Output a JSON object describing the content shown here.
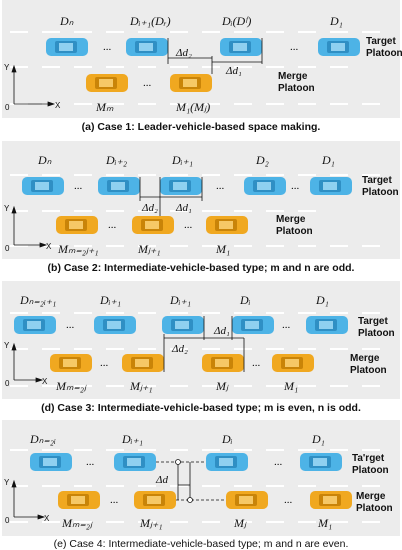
{
  "colors": {
    "road": "#ececec",
    "lane_mark": "#ffffff",
    "target_car": "#4db3e6",
    "target_car_dark": "#2f8fc4",
    "merge_car": "#f0a820",
    "merge_car_dark": "#c98408"
  },
  "axes": {
    "y": "Y",
    "x": "X",
    "origin": "0"
  },
  "panels": [
    {
      "caption": "(a) Case 1: Leader-vehicle-based space making.",
      "target_label": [
        "Target",
        "Platoon"
      ],
      "merge_label": [
        "Merge",
        "Platoon"
      ],
      "dots": "...",
      "deltas": [
        "Δd₂",
        "Δd₁"
      ],
      "top_labels": [
        "Dₙ",
        "Dᵢ₊₁(Dᵣ)",
        "Dᵢ(Dᶠ)",
        "D₁"
      ],
      "bottom_labels": [
        "Mₘ",
        "M₁(Mⱼ)"
      ]
    },
    {
      "caption": "(b) Case 2: Intermediate-vehicle-based type; m and n are odd.",
      "target_label": [
        "Target",
        "Platoon"
      ],
      "merge_label": [
        "Merge",
        "Platoon"
      ],
      "dots": "...",
      "deltas": [
        "Δd₂",
        "Δd₁"
      ],
      "top_labels": [
        "Dₙ",
        "Dᵢ₊₂",
        "Dᵢ₊₁",
        "D₂",
        "D₁"
      ],
      "bottom_labels": [
        "Mₘ₌₂ⱼ₊₁",
        "Mⱼ₊₁",
        "M₁"
      ]
    },
    {
      "caption": "(d) Case 3: Intermediate-vehicle-based type; m is even, n is odd.",
      "target_label": [
        "Target",
        "Platoon"
      ],
      "merge_label": [
        "Merge",
        "Platoon"
      ],
      "dots": "...",
      "deltas": [
        "Δd₂",
        "Δd₁"
      ],
      "top_labels": [
        "Dₙ₌₂ᵢ₊₁",
        "Dᵢ₊₁",
        "Dᵢ₊₁",
        "Dᵢ",
        "D₁"
      ],
      "bottom_labels": [
        "Mₘ₌₂ⱼ",
        "Mⱼ₊₁",
        "Mⱼ",
        "M₁"
      ]
    },
    {
      "caption": "(e) Case 4: Intermediate-vehicle-based type; m and n are even.",
      "target_label": [
        "Ta'rget",
        "Platoon"
      ],
      "merge_label": [
        "Merge",
        "Platoon"
      ],
      "dots": "...",
      "deltas": [
        "Δd"
      ],
      "top_labels": [
        "Dₙ₌₂ᵢ",
        "Dᵢ₊₁",
        "Dᵢ",
        "D₁"
      ],
      "bottom_labels": [
        "Mₘ₌₂ⱼ",
        "Mⱼ₊₁",
        "Mⱼ",
        "M₁"
      ]
    }
  ]
}
